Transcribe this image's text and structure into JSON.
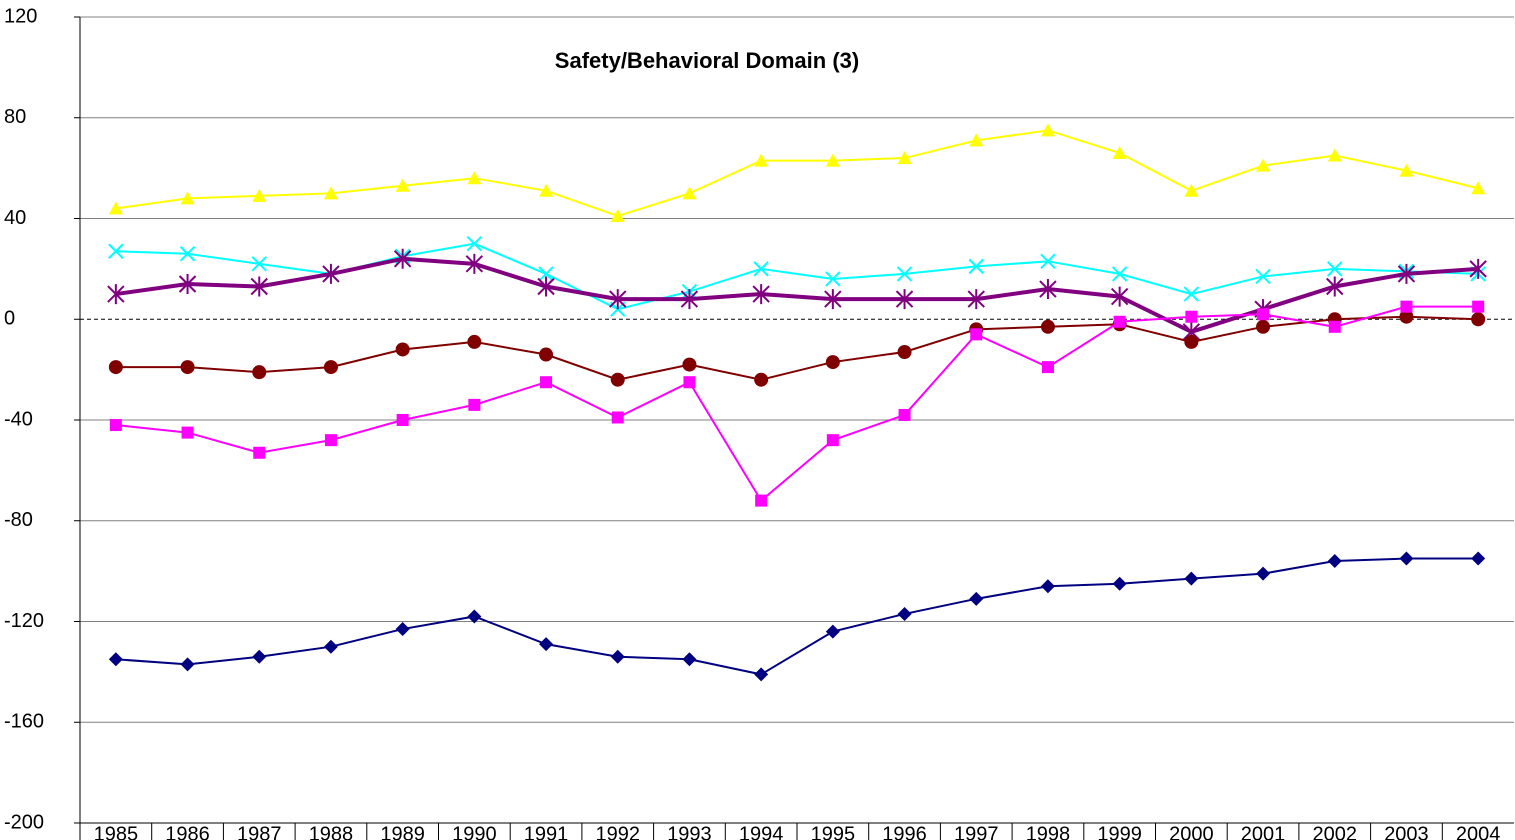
{
  "chart_data": {
    "type": "line",
    "title": "Safety/Behavioral Domain (3)",
    "categories": [
      "1985",
      "1986",
      "1987",
      "1988",
      "1989",
      "1990",
      "1991",
      "1992",
      "1993",
      "1994",
      "1995",
      "1996",
      "1997",
      "1998",
      "1999",
      "2000",
      "2001",
      "2002",
      "2003",
      "2004"
    ],
    "ylim": [
      -200,
      120
    ],
    "yticks": [
      -200,
      -160,
      -120,
      -80,
      -40,
      0,
      40,
      80,
      120
    ],
    "grid": true,
    "zero_line_dashed": true,
    "series": [
      {
        "color": "#000080",
        "marker": "diamond",
        "width": 2,
        "values": [
          -135,
          -137,
          -134,
          -130,
          -123,
          -118,
          -129,
          -134,
          -135,
          -141,
          -124,
          -117,
          -111,
          -106,
          -105,
          -103,
          -101,
          -96,
          -95,
          -95
        ]
      },
      {
        "color": "#ffff00",
        "marker": "triangle",
        "width": 2,
        "values": [
          44,
          48,
          49,
          50,
          53,
          56,
          51,
          41,
          50,
          63,
          63,
          64,
          71,
          75,
          66,
          51,
          61,
          65,
          59,
          52
        ]
      },
      {
        "color": "#00ffff",
        "marker": "x",
        "width": 2,
        "values": [
          27,
          26,
          22,
          18,
          25,
          30,
          18,
          4,
          11,
          20,
          16,
          18,
          21,
          23,
          18,
          10,
          17,
          20,
          19,
          18
        ]
      },
      {
        "color": "#800080",
        "marker": "star",
        "width": 4,
        "values": [
          10,
          14,
          13,
          18,
          24,
          22,
          13,
          8,
          8,
          10,
          8,
          8,
          8,
          12,
          9,
          -5,
          4,
          13,
          18,
          20
        ]
      },
      {
        "color": "#800000",
        "marker": "circle",
        "width": 2,
        "values": [
          -19,
          -19,
          -21,
          -19,
          -12,
          -9,
          -14,
          -24,
          -18,
          -24,
          -17,
          -13,
          -4,
          -3,
          -2,
          -9,
          -3,
          0,
          1,
          0
        ]
      },
      {
        "color": "#ff00ff",
        "marker": "square",
        "width": 2,
        "values": [
          -42,
          -45,
          -53,
          -48,
          -40,
          -34,
          -25,
          -39,
          -25,
          -72,
          -48,
          -38,
          -6,
          -19,
          -1,
          1,
          2,
          -3,
          5,
          5
        ]
      }
    ]
  }
}
